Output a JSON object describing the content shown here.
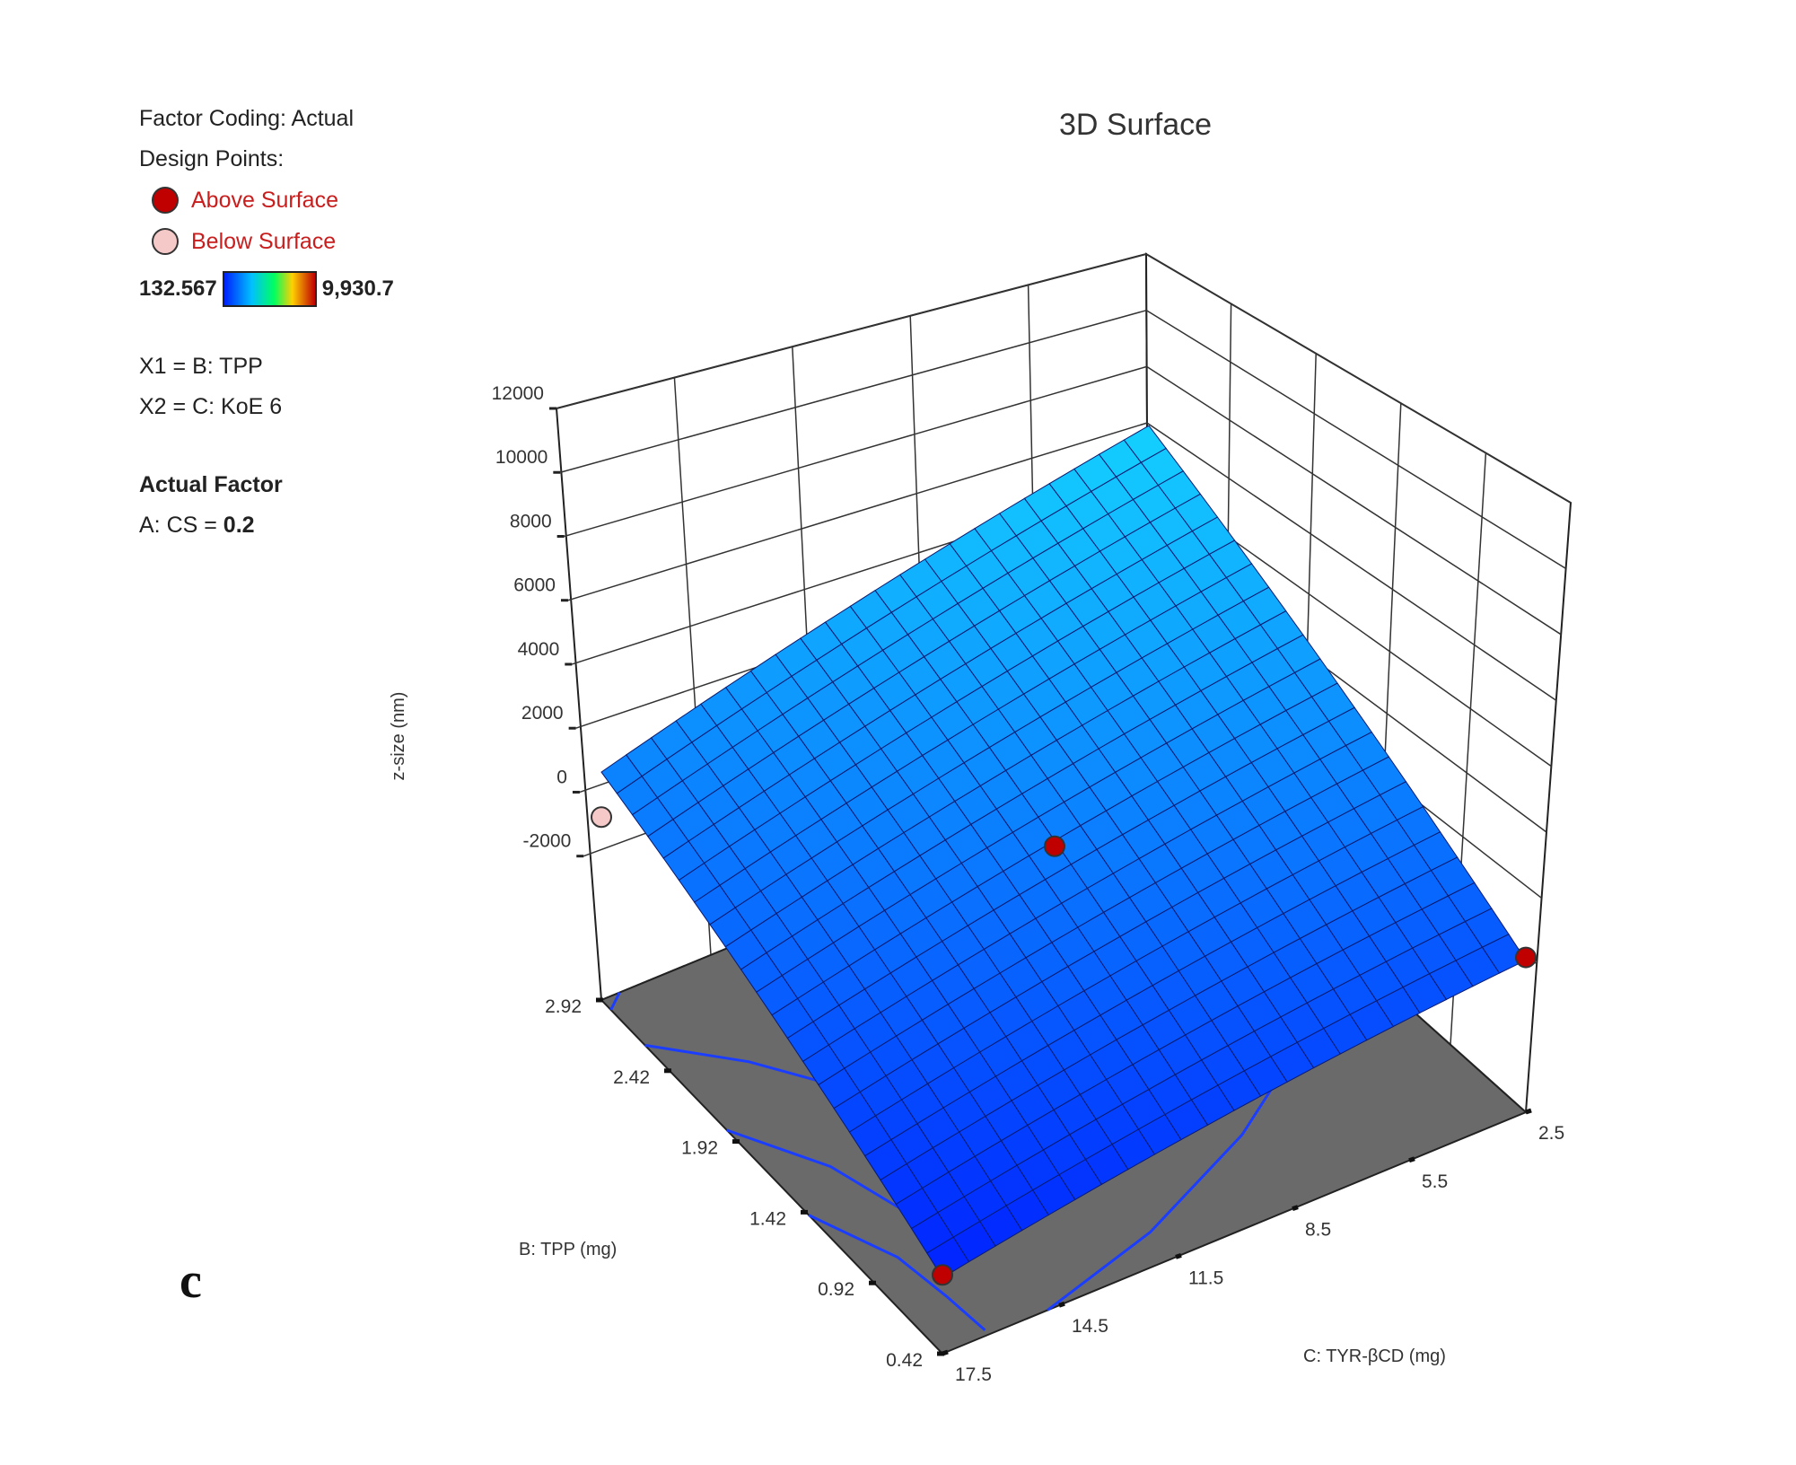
{
  "legend": {
    "factor_coding": "Factor Coding: Actual",
    "design_points_title": "Design Points:",
    "above_label": "Above Surface",
    "below_label": "Below Surface",
    "color_min": "132.567",
    "color_max": "9,930.7",
    "x1": "X1 = B: TPP",
    "x2": "X2 = C: KoE 6",
    "actual_factor_title": "Actual Factor",
    "actual_factor_name": "A: CS = ",
    "actual_factor_value": "0.2"
  },
  "panel_letter": "c",
  "chart_data": {
    "type": "surface",
    "title": "3D Surface",
    "zlabel": "z-size (nm)",
    "xlabel": "B: TPP (mg)",
    "ylabel": "C: TYR-βCD (mg)",
    "z_ticks": [
      "12000",
      "10000",
      "8000",
      "6000",
      "4000",
      "2000",
      "0",
      "-2000"
    ],
    "z_tick_values": [
      12000,
      10000,
      8000,
      6000,
      4000,
      2000,
      0,
      -2000
    ],
    "b_ticks": [
      "2.92",
      "2.42",
      "1.92",
      "1.42",
      "0.92",
      "0.42"
    ],
    "b_tick_values": [
      2.92,
      2.42,
      1.92,
      1.42,
      0.92,
      0.42
    ],
    "c_ticks": [
      "2.5",
      "5.5",
      "8.5",
      "11.5",
      "14.5",
      "17.5"
    ],
    "c_tick_values": [
      2.5,
      5.5,
      8.5,
      11.5,
      14.5,
      17.5
    ],
    "zlim": [
      -2000,
      12000
    ],
    "blim": [
      0.42,
      2.92
    ],
    "clim": [
      2.5,
      17.5
    ],
    "corner_z": {
      "b_high_c_high": 1600,
      "b_high_c_low": 5900,
      "b_low_c_low": -1100,
      "b_low_c_high": -3800
    },
    "color_scale": {
      "min": 132.567,
      "max": 9930.7,
      "colors": [
        "#0020ff",
        "#00c0ff",
        "#00ff60",
        "#ffd000",
        "#c00000"
      ]
    },
    "design_points": [
      {
        "b": 2.92,
        "c": 17.5,
        "z": 0,
        "position": "below"
      },
      {
        "b": 1.67,
        "c": 10.0,
        "z": 1100,
        "position": "above"
      },
      {
        "b": 0.42,
        "c": 2.5,
        "z": -1000,
        "position": "above"
      },
      {
        "b": 0.42,
        "c": 17.5,
        "z": -3700,
        "position": "above"
      }
    ],
    "grid": true
  }
}
